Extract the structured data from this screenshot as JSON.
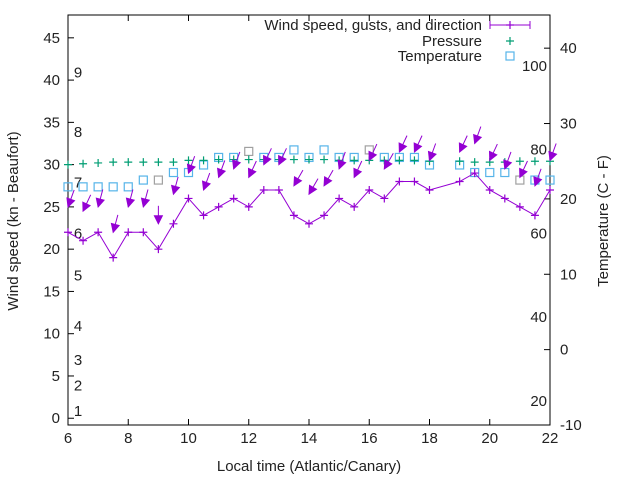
{
  "chart_data": {
    "type": "line",
    "title": "",
    "xlabel": "Local time (Atlantic/Canary)",
    "ylabel": "Wind speed (kn - Beaufort)",
    "y2label": "Temperature (C - F)",
    "xlim": [
      6,
      22
    ],
    "ylim": [
      -0.8,
      47.7
    ],
    "y2lim": [
      -10,
      44.4
    ],
    "x_ticks": [
      6,
      8,
      10,
      12,
      14,
      16,
      18,
      20,
      22
    ],
    "y_ticks": [
      0,
      5,
      10,
      15,
      20,
      25,
      30,
      35,
      40,
      45
    ],
    "y2_ticks": [
      -10,
      0,
      10,
      20,
      30,
      40
    ],
    "beaufort_labels": [
      {
        "label": "1",
        "kn": 1
      },
      {
        "label": "2",
        "kn": 4
      },
      {
        "label": "3",
        "kn": 7
      },
      {
        "label": "4",
        "kn": 11
      },
      {
        "label": "5",
        "kn": 17
      },
      {
        "label": "6",
        "kn": 22
      },
      {
        "label": "7",
        "kn": 28
      },
      {
        "label": "8",
        "kn": 34
      },
      {
        "label": "9",
        "kn": 41
      }
    ],
    "fahrenheit_labels": [
      {
        "label": "20",
        "f": 20
      },
      {
        "label": "40",
        "f": 40
      },
      {
        "label": "60",
        "f": 60
      },
      {
        "label": "80",
        "f": 80
      },
      {
        "label": "100",
        "f": 100
      }
    ],
    "legend_position": "top-right",
    "legend": [
      "Wind speed, gusts, and direction",
      "Pressure",
      "Temperature"
    ],
    "colors": {
      "wind": "#9400d3",
      "pressure": "#009e73",
      "temperature": "#56b4e9",
      "temperature_alt": "#a0a0a0",
      "axis": "#000000"
    },
    "x": [
      6,
      6.5,
      7,
      7.5,
      8,
      8.5,
      9,
      9.5,
      10,
      10.5,
      11,
      11.5,
      12,
      12.5,
      13,
      13.5,
      14,
      14.5,
      15,
      15.5,
      16,
      16.5,
      17,
      17.5,
      18,
      19,
      19.5,
      20,
      20.5,
      21,
      21.5,
      22
    ],
    "series": [
      {
        "name": "Wind speed",
        "values": [
          22,
          21,
          22,
          19,
          22,
          22,
          20,
          23,
          26,
          24,
          25,
          26,
          25,
          27,
          27,
          24,
          23,
          24,
          26,
          25,
          27,
          26,
          28,
          28,
          27,
          28,
          29,
          27,
          26,
          25,
          24,
          27
        ]
      },
      {
        "name": "Gusts",
        "values": [
          25,
          24.5,
          25,
          22,
          25,
          25,
          23,
          26.5,
          29,
          27,
          28.5,
          29.5,
          28.5,
          30,
          30,
          27.5,
          26.5,
          27.5,
          29.5,
          28.5,
          30.5,
          29.5,
          31.5,
          31.5,
          30.5,
          31.5,
          32.5,
          30.5,
          29.5,
          28.5,
          27.5,
          30.5
        ]
      },
      {
        "name": "Direction (deg)",
        "values": [
          20,
          25,
          15,
          15,
          15,
          15,
          0,
          15,
          20,
          20,
          20,
          20,
          25,
          25,
          25,
          30,
          30,
          30,
          20,
          25,
          25,
          30,
          25,
          25,
          20,
          25,
          20,
          25,
          20,
          25,
          20,
          20
        ]
      },
      {
        "name": "Pressure (plotted on wind axis)",
        "values": [
          30.0,
          30.1,
          30.2,
          30.3,
          30.3,
          30.3,
          30.3,
          30.3,
          30.5,
          30.5,
          30.6,
          30.6,
          30.6,
          30.6,
          30.6,
          30.6,
          30.6,
          30.6,
          30.5,
          30.5,
          30.5,
          30.5,
          30.5,
          30.5,
          30.4,
          30.4,
          30.3,
          30.3,
          30.3,
          30.4,
          30.4,
          30.4
        ]
      },
      {
        "name": "Temperature (C)",
        "values": [
          21.6,
          21.6,
          21.6,
          21.6,
          21.6,
          22.5,
          22.5,
          23.5,
          23.5,
          24.5,
          25.5,
          25.5,
          26.3,
          25.5,
          25.5,
          26.5,
          25.5,
          26.5,
          25.5,
          25.5,
          26.5,
          25.5,
          25.5,
          25.5,
          24.5,
          24.5,
          23.5,
          23.5,
          23.5,
          22.5,
          22.5,
          22.5
        ]
      }
    ],
    "temperature_alt_times": [
      9,
      12,
      16,
      21
    ]
  }
}
